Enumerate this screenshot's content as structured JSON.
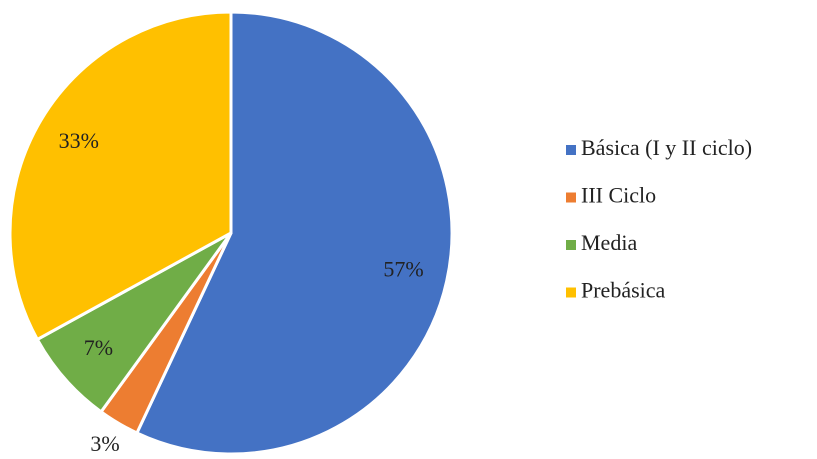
{
  "chart_data": {
    "type": "pie",
    "categories": [
      "Básica (I y II ciclo)",
      "III Ciclo",
      "Media",
      "Prebásica"
    ],
    "values": [
      57,
      3,
      7,
      33
    ],
    "value_labels": [
      "57%",
      "3%",
      "7%",
      "33%"
    ],
    "colors": [
      "#4472c4",
      "#ed7d31",
      "#70ad47",
      "#ffc000"
    ],
    "legend": "right"
  }
}
